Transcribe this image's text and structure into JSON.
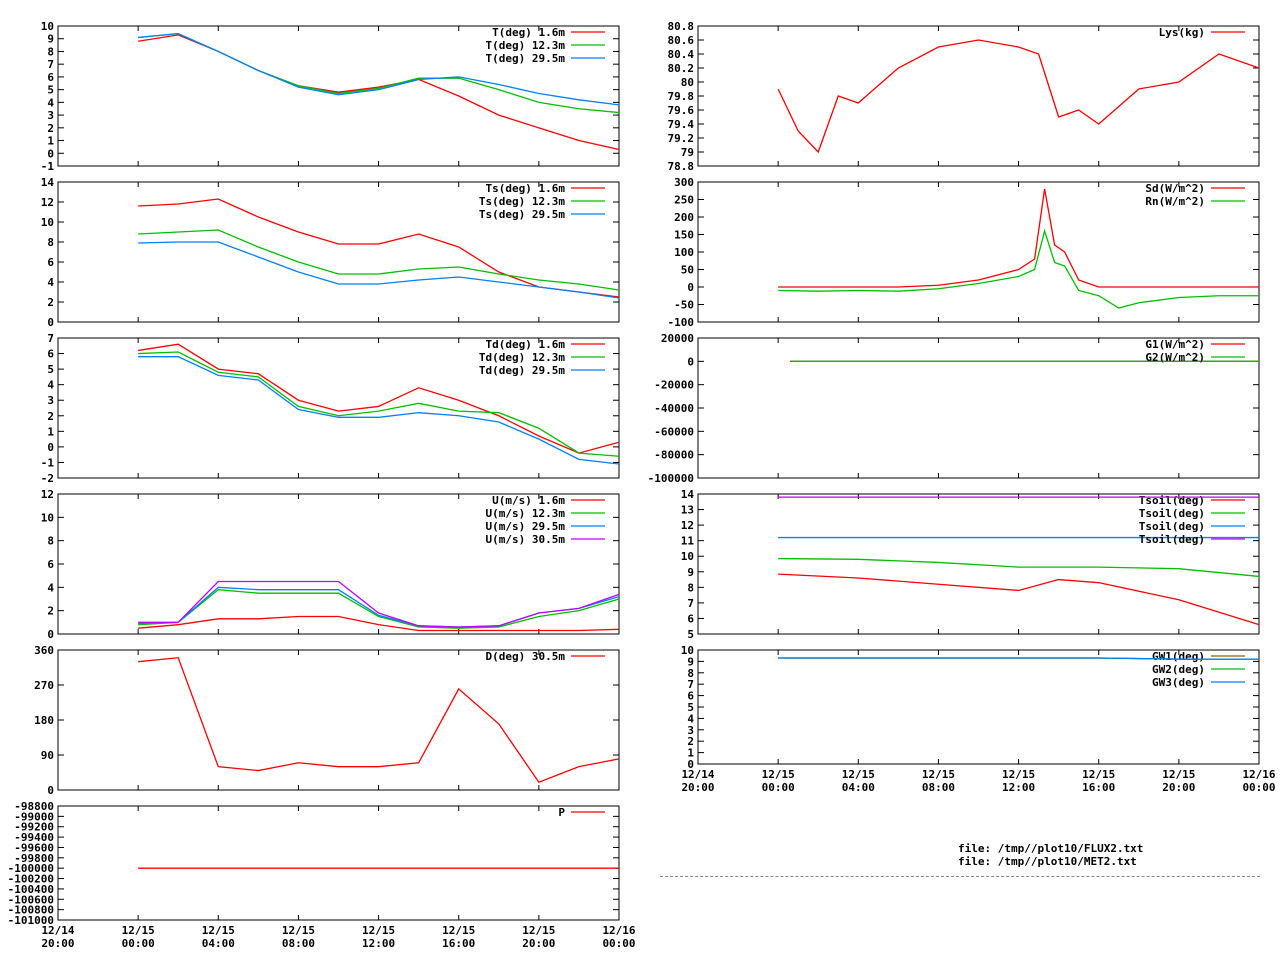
{
  "time_ticks": [
    {
      "date": "12/14",
      "time": "20:00"
    },
    {
      "date": "12/15",
      "time": "00:00"
    },
    {
      "date": "12/15",
      "time": "04:00"
    },
    {
      "date": "12/15",
      "time": "08:00"
    },
    {
      "date": "12/15",
      "time": "12:00"
    },
    {
      "date": "12/15",
      "time": "16:00"
    },
    {
      "date": "12/15",
      "time": "20:00"
    },
    {
      "date": "12/16",
      "time": "00:00"
    }
  ],
  "files": [
    "file: /tmp//plot10/FLUX2.txt",
    "file: /tmp//plot10/MET2.txt"
  ],
  "colors": {
    "red": "#ff0000",
    "green": "#00c000",
    "blue": "#0080ff",
    "purple": "#c000ff",
    "brown": "#a05a00"
  },
  "chart_data": [
    {
      "id": "air-temperature",
      "type": "line",
      "ylim": [
        -1,
        10
      ],
      "yticks": [
        "-1",
        "0",
        "1",
        "2",
        "3",
        "4",
        "5",
        "6",
        "7",
        "8",
        "9",
        "10"
      ],
      "x_hours": [
        4,
        6,
        8,
        10,
        12,
        14,
        16,
        18,
        20,
        22,
        24,
        26,
        28
      ],
      "series": [
        {
          "name": "T(deg)  1.6m",
          "color": "red",
          "values": [
            8.8,
            9.3,
            8.0,
            6.5,
            5.3,
            4.8,
            5.2,
            5.8,
            4.5,
            3.0,
            2.0,
            1.0,
            0.3
          ]
        },
        {
          "name": "T(deg) 12.3m",
          "color": "green",
          "values": [
            9.1,
            9.4,
            8.0,
            6.5,
            5.3,
            4.7,
            5.1,
            5.9,
            5.9,
            5.0,
            4.0,
            3.5,
            3.2
          ]
        },
        {
          "name": "T(deg) 29.5m",
          "color": "blue",
          "values": [
            9.1,
            9.4,
            8.0,
            6.5,
            5.2,
            4.6,
            5.0,
            5.8,
            6.0,
            5.4,
            4.7,
            4.2,
            3.8
          ]
        }
      ]
    },
    {
      "id": "surface-temperature",
      "type": "line",
      "ylim": [
        0,
        14
      ],
      "yticks": [
        "0",
        "2",
        "4",
        "6",
        "8",
        "10",
        "12",
        "14"
      ],
      "x_hours": [
        4,
        6,
        8,
        10,
        12,
        14,
        16,
        18,
        20,
        22,
        24,
        26,
        28
      ],
      "series": [
        {
          "name": "Ts(deg)  1.6m",
          "color": "red",
          "values": [
            11.6,
            11.8,
            12.3,
            10.5,
            9.0,
            7.8,
            7.8,
            8.8,
            7.5,
            5.0,
            3.5,
            3.0,
            2.5
          ]
        },
        {
          "name": "Ts(deg) 12.3m",
          "color": "green",
          "values": [
            8.8,
            9.0,
            9.2,
            7.5,
            6.0,
            4.8,
            4.8,
            5.3,
            5.5,
            4.8,
            4.2,
            3.8,
            3.2
          ]
        },
        {
          "name": "Ts(deg) 29.5m",
          "color": "blue",
          "values": [
            7.9,
            8.0,
            8.0,
            6.5,
            5.0,
            3.8,
            3.8,
            4.2,
            4.5,
            4.0,
            3.5,
            3.0,
            2.4
          ]
        }
      ]
    },
    {
      "id": "dew-point",
      "type": "line",
      "ylim": [
        -2,
        7
      ],
      "yticks": [
        "-2",
        "-1",
        "0",
        "1",
        "2",
        "3",
        "4",
        "5",
        "6",
        "7"
      ],
      "x_hours": [
        4,
        6,
        8,
        10,
        12,
        14,
        16,
        18,
        20,
        22,
        24,
        26,
        28
      ],
      "series": [
        {
          "name": "Td(deg)  1.6m",
          "color": "red",
          "values": [
            6.2,
            6.6,
            5.0,
            4.7,
            3.0,
            2.3,
            2.6,
            3.8,
            3.0,
            2.0,
            0.7,
            -0.4,
            0.3
          ]
        },
        {
          "name": "Td(deg) 12.3m",
          "color": "green",
          "values": [
            6.0,
            6.1,
            4.8,
            4.5,
            2.6,
            2.0,
            2.3,
            2.8,
            2.3,
            2.2,
            1.2,
            -0.4,
            -0.6
          ]
        },
        {
          "name": "Td(deg) 29.5m",
          "color": "blue",
          "values": [
            5.8,
            5.8,
            4.6,
            4.3,
            2.4,
            1.9,
            1.9,
            2.2,
            2.0,
            1.6,
            0.5,
            -0.8,
            -1.1
          ]
        }
      ]
    },
    {
      "id": "wind-speed",
      "type": "line",
      "ylim": [
        0,
        12
      ],
      "yticks": [
        "0",
        "2",
        "4",
        "6",
        "8",
        "10",
        "12"
      ],
      "x_hours": [
        4,
        6,
        8,
        10,
        12,
        14,
        16,
        18,
        20,
        22,
        24,
        26,
        28
      ],
      "series": [
        {
          "name": "U(m/s)  1.6m",
          "color": "red",
          "values": [
            0.5,
            0.8,
            1.3,
            1.3,
            1.5,
            1.5,
            0.8,
            0.3,
            0.3,
            0.3,
            0.3,
            0.3,
            0.4
          ]
        },
        {
          "name": "U(m/s) 12.3m",
          "color": "green",
          "values": [
            0.8,
            1.0,
            3.8,
            3.5,
            3.5,
            3.5,
            1.5,
            0.6,
            0.5,
            0.6,
            1.5,
            2.0,
            3.0
          ]
        },
        {
          "name": "U(m/s) 29.5m",
          "color": "blue",
          "values": [
            0.9,
            1.0,
            4.0,
            3.8,
            3.8,
            3.8,
            1.6,
            0.7,
            0.6,
            0.7,
            1.8,
            2.2,
            3.2
          ]
        },
        {
          "name": "U(m/s) 30.5m",
          "color": "purple",
          "values": [
            1.0,
            1.0,
            4.5,
            4.5,
            4.5,
            4.5,
            1.8,
            0.7,
            0.6,
            0.7,
            1.8,
            2.2,
            3.4
          ]
        }
      ]
    },
    {
      "id": "wind-direction",
      "type": "line",
      "ylim": [
        0,
        360
      ],
      "yticks": [
        "0",
        "90",
        "180",
        "270",
        "360"
      ],
      "x_hours": [
        4,
        6,
        8,
        10,
        12,
        14,
        16,
        18,
        20,
        22,
        24,
        26,
        28
      ],
      "series": [
        {
          "name": "D(deg)  30.5m",
          "color": "red",
          "values": [
            330,
            340,
            60,
            50,
            70,
            60,
            60,
            70,
            260,
            170,
            20,
            60,
            80
          ]
        }
      ]
    },
    {
      "id": "pressure",
      "type": "line",
      "ylim": [
        -101000,
        -98800
      ],
      "yticks": [
        "-101000",
        "-100800",
        "-100600",
        "-100400",
        "-100200",
        "-100000",
        "-99800",
        "-99600",
        "-99400",
        "-99200",
        "-99000",
        "-98800"
      ],
      "x_hours": [
        4,
        28
      ],
      "series": [
        {
          "name": "P",
          "color": "red",
          "values": [
            -100000,
            -100000
          ]
        }
      ]
    },
    {
      "id": "lysimeter",
      "type": "line",
      "ylim": [
        78.8,
        80.8
      ],
      "yticks": [
        "78.8",
        "79",
        "79.2",
        "79.4",
        "79.6",
        "79.8",
        "80",
        "80.2",
        "80.4",
        "80.6",
        "80.8"
      ],
      "x_hours": [
        4,
        5,
        6,
        7,
        8,
        10,
        12,
        14,
        16,
        17,
        18,
        19,
        20,
        22,
        24,
        26,
        28
      ],
      "series": [
        {
          "name": "Lys(kg)",
          "color": "red",
          "values": [
            79.9,
            79.3,
            79.0,
            79.8,
            79.7,
            80.2,
            80.5,
            80.6,
            80.5,
            80.4,
            79.5,
            79.6,
            79.4,
            79.9,
            80.0,
            80.4,
            80.2
          ]
        }
      ]
    },
    {
      "id": "radiation",
      "type": "line",
      "ylim": [
        -100,
        300
      ],
      "yticks": [
        "-100",
        "-50",
        "0",
        "50",
        "100",
        "150",
        "200",
        "250",
        "300"
      ],
      "x_hours": [
        4,
        6,
        8,
        10,
        12,
        14,
        16,
        16.8,
        17.3,
        17.8,
        18.3,
        19,
        20,
        21,
        22,
        24,
        26,
        28
      ],
      "series": [
        {
          "name": "Sd(W/m^2)",
          "color": "red",
          "values": [
            0,
            0,
            0,
            0,
            5,
            20,
            50,
            80,
            280,
            120,
            100,
            20,
            0,
            0,
            0,
            0,
            0,
            0
          ]
        },
        {
          "name": "Rn(W/m^2)",
          "color": "green",
          "values": [
            -10,
            -12,
            -10,
            -12,
            -5,
            10,
            30,
            50,
            160,
            70,
            60,
            -10,
            -25,
            -60,
            -45,
            -30,
            -25,
            -25
          ]
        }
      ]
    },
    {
      "id": "ground-heat-flux",
      "type": "line",
      "ylim": [
        -100000,
        20000
      ],
      "yticks": [
        "-100000",
        "-80000",
        "-60000",
        "-40000",
        "-20000",
        "0",
        "20000"
      ],
      "x_hours": [
        4.6,
        28
      ],
      "series": [
        {
          "name": "G1(W/m^2)",
          "color": "red",
          "values": [
            0,
            0
          ]
        },
        {
          "name": "G2(W/m^2)",
          "color": "green",
          "values": [
            0,
            0
          ]
        }
      ]
    },
    {
      "id": "soil-temperature",
      "type": "line",
      "ylim": [
        5,
        14
      ],
      "yticks": [
        "5",
        "6",
        "7",
        "8",
        "9",
        "10",
        "11",
        "12",
        "13",
        "14"
      ],
      "x_hours": [
        4,
        8,
        12,
        16,
        18,
        20,
        24,
        28
      ],
      "series": [
        {
          "name": "Tsoil(deg)",
          "color": "red",
          "values": [
            8.85,
            8.6,
            8.2,
            7.8,
            8.5,
            8.3,
            7.2,
            5.6
          ]
        },
        {
          "name": "Tsoil(deg)",
          "color": "green",
          "values": [
            9.85,
            9.8,
            9.6,
            9.3,
            9.3,
            9.3,
            9.2,
            8.7
          ]
        },
        {
          "name": "Tsoil(deg)",
          "color": "blue",
          "values": [
            11.2,
            11.2,
            11.2,
            11.2,
            11.2,
            11.2,
            11.2,
            11.2
          ]
        },
        {
          "name": "Tsoil(deg)",
          "color": "purple",
          "values": [
            13.8,
            13.8,
            13.8,
            13.8,
            13.8,
            13.8,
            13.8,
            13.8
          ]
        }
      ]
    },
    {
      "id": "groundwater",
      "type": "line",
      "ylim": [
        0,
        10
      ],
      "yticks": [
        "0",
        "1",
        "2",
        "3",
        "4",
        "5",
        "6",
        "7",
        "8",
        "9",
        "10"
      ],
      "x_hours": [
        4,
        8,
        12,
        16,
        20,
        24,
        28
      ],
      "series": [
        {
          "name": "GW1(deg)",
          "color": "brown",
          "values": [
            9.3,
            9.3,
            9.3,
            9.3,
            9.3,
            9.2,
            9.2
          ]
        },
        {
          "name": "GW2(deg)",
          "color": "green",
          "values": [
            9.3,
            9.3,
            9.3,
            9.3,
            9.3,
            9.2,
            9.2
          ]
        },
        {
          "name": "GW3(deg)",
          "color": "blue",
          "values": [
            9.3,
            9.3,
            9.3,
            9.3,
            9.3,
            9.2,
            9.2
          ]
        }
      ]
    }
  ]
}
